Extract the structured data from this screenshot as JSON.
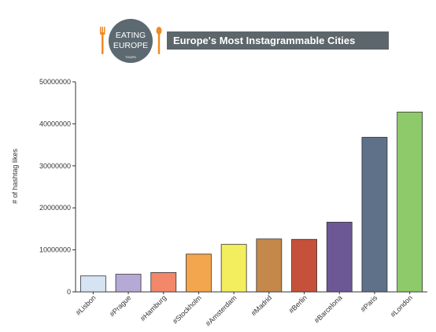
{
  "logo": {
    "line1": "EATING",
    "line2": "EUROPE",
    "line3": "TOURS"
  },
  "chart_data": {
    "type": "bar",
    "title": "Europe's Most Instagrammable Cities",
    "xlabel": "",
    "ylabel": "# of hashtag likes",
    "ylim": [
      0,
      50000000
    ],
    "yticks": [
      0,
      10000000,
      20000000,
      30000000,
      40000000,
      50000000
    ],
    "ytick_labels": [
      "0",
      "10000000",
      "20000000",
      "30000000",
      "40000000",
      "50000000"
    ],
    "categories": [
      "#Lisbon",
      "#Prague",
      "#Hamburg",
      "#Stockholm",
      "#Amsterdam",
      "#Madrid",
      "#Berlin",
      "#Barcelona",
      "#Paris",
      "#London"
    ],
    "values": [
      3800000,
      4200000,
      4600000,
      9000000,
      11300000,
      12600000,
      12500000,
      16600000,
      36800000,
      42800000
    ],
    "colors": [
      "#d6e3f3",
      "#b5a9d6",
      "#f2876a",
      "#f3a64d",
      "#f3ee5d",
      "#c3884a",
      "#c6513a",
      "#6d5896",
      "#5e7189",
      "#8ec96a"
    ],
    "grid": false,
    "legend": "none"
  }
}
